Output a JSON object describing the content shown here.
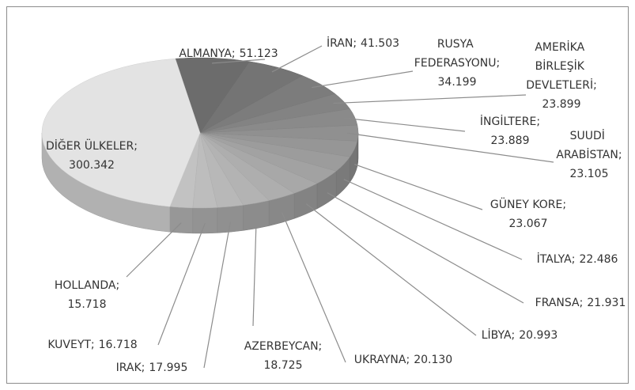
{
  "chart_data": {
    "type": "pie",
    "categories": [
      "ALMANYA",
      "İRAN",
      "RUSYA FEDERASYONU",
      "AMERİKA BİRLEŞİK DEVLETLERİ",
      "İNGİLTERE",
      "SUUDİ ARABİSTAN",
      "GÜNEY KORE",
      "İTALYA",
      "FRANSA",
      "LİBYA",
      "UKRAYNA",
      "AZERBEYCAN",
      "IRAK",
      "KUVEYT",
      "HOLLANDA",
      "DİĞER ÜLKELER"
    ],
    "values": [
      51.123,
      41.503,
      34.199,
      23.899,
      23.889,
      23.105,
      23.067,
      22.486,
      21.931,
      20.993,
      20.13,
      18.725,
      17.995,
      16.718,
      15.718,
      300.342
    ],
    "value_labels": [
      "51.123",
      "41.503",
      "34.199",
      "23.899",
      "23.889",
      "23.105",
      "23.067",
      "22.486",
      "21.931",
      "20.993",
      "20.130",
      "18.725",
      "17.995",
      "16.718",
      "15.718",
      "300.342"
    ],
    "separator": ";",
    "colors": [
      "#6c6c6c",
      "#747474",
      "#7c7c7c",
      "#838383",
      "#8a8a8a",
      "#909090",
      "#969696",
      "#9c9c9c",
      "#a2a2a2",
      "#a8a8a8",
      "#aeaeae",
      "#b3b3b3",
      "#b8b8b8",
      "#bdbdbd",
      "#c2c2c2",
      "#e3e3e3"
    ]
  }
}
